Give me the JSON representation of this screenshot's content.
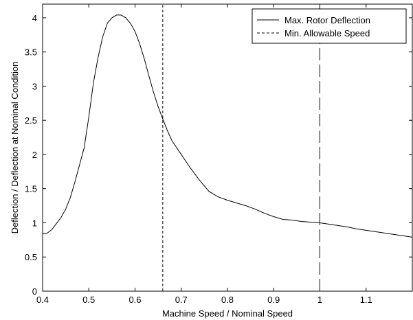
{
  "chart_data": {
    "type": "line",
    "title": "",
    "xlabel": "Machine Speed / Nominal  Speed",
    "ylabel": "Deflection / Deflection at Nominal Condition",
    "xlim": [
      0.4,
      1.2
    ],
    "ylim": [
      0,
      4.2
    ],
    "xticks": [
      "0.4",
      "0.5",
      "0.6",
      "0.7",
      "0.8",
      "0.9",
      "1",
      "1.1"
    ],
    "yticks": [
      "0",
      "0.5",
      "1",
      "1.5",
      "2",
      "2.5",
      "3",
      "3.5",
      "4"
    ],
    "grid": false,
    "legend_position": "top-right",
    "series": [
      {
        "name": "Max. Rotor Deflection",
        "style": "solid",
        "x": [
          0.4,
          0.41,
          0.42,
          0.43,
          0.44,
          0.45,
          0.46,
          0.47,
          0.48,
          0.49,
          0.5,
          0.51,
          0.52,
          0.53,
          0.54,
          0.55,
          0.56,
          0.57,
          0.58,
          0.59,
          0.6,
          0.61,
          0.62,
          0.63,
          0.64,
          0.65,
          0.66,
          0.67,
          0.68,
          0.7,
          0.72,
          0.74,
          0.76,
          0.78,
          0.8,
          0.82,
          0.84,
          0.86,
          0.88,
          0.9,
          0.92,
          0.94,
          0.96,
          0.98,
          1.0,
          1.02,
          1.04,
          1.06,
          1.08,
          1.1,
          1.12,
          1.14,
          1.16,
          1.18,
          1.2
        ],
        "y": [
          0.84,
          0.85,
          0.9,
          0.99,
          1.08,
          1.2,
          1.37,
          1.6,
          1.85,
          2.1,
          2.55,
          3.05,
          3.42,
          3.72,
          3.92,
          4.0,
          4.04,
          4.04,
          4.0,
          3.92,
          3.8,
          3.62,
          3.4,
          3.15,
          2.91,
          2.7,
          2.52,
          2.35,
          2.2,
          2.0,
          1.8,
          1.62,
          1.46,
          1.38,
          1.33,
          1.29,
          1.25,
          1.2,
          1.14,
          1.09,
          1.05,
          1.04,
          1.02,
          1.01,
          1.0,
          0.98,
          0.96,
          0.94,
          0.91,
          0.89,
          0.87,
          0.85,
          0.83,
          0.81,
          0.79
        ]
      },
      {
        "name": "Min. Allowable Speed",
        "style": "dashed",
        "x": [
          0.66,
          0.66
        ],
        "y": [
          0,
          4.2
        ]
      },
      {
        "name": "",
        "style": "long-dashed",
        "x": [
          1.0,
          1.0
        ],
        "y": [
          0,
          4.2
        ]
      }
    ]
  }
}
